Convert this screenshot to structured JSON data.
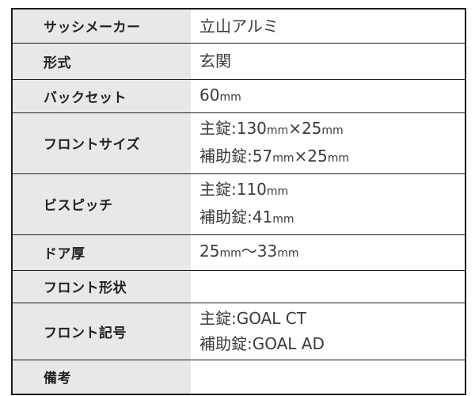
{
  "page": {
    "background_color": "#ffffff"
  },
  "spec_table": {
    "colors": {
      "label_bg": "#e8e8e8",
      "border": "#1c1c1c",
      "label_text": "#222222",
      "value_text": "#3c3c3c"
    },
    "unit_label": "mm",
    "rows": [
      {
        "label": "サッシメーカー",
        "value_lines": [
          "立山アルミ"
        ]
      },
      {
        "label": "形式",
        "value_lines": [
          "玄関"
        ]
      },
      {
        "label": "バックセット",
        "value_lines": [
          "60mm"
        ]
      },
      {
        "label": "フロントサイズ",
        "value_lines": [
          "主錠:130mm×25mm",
          "補助錠:57mm×25mm"
        ]
      },
      {
        "label": "ビスピッチ",
        "value_lines": [
          "主錠:110mm",
          "補助錠:41mm"
        ]
      },
      {
        "label": "ドア厚",
        "value_lines": [
          "25mm〜33mm"
        ]
      },
      {
        "label": "フロント形状",
        "value_lines": []
      },
      {
        "label": "フロント記号",
        "value_lines": [
          "主錠:GOAL CT",
          "補助錠:GOAL AD"
        ]
      },
      {
        "label": "備考",
        "value_lines": []
      }
    ]
  }
}
